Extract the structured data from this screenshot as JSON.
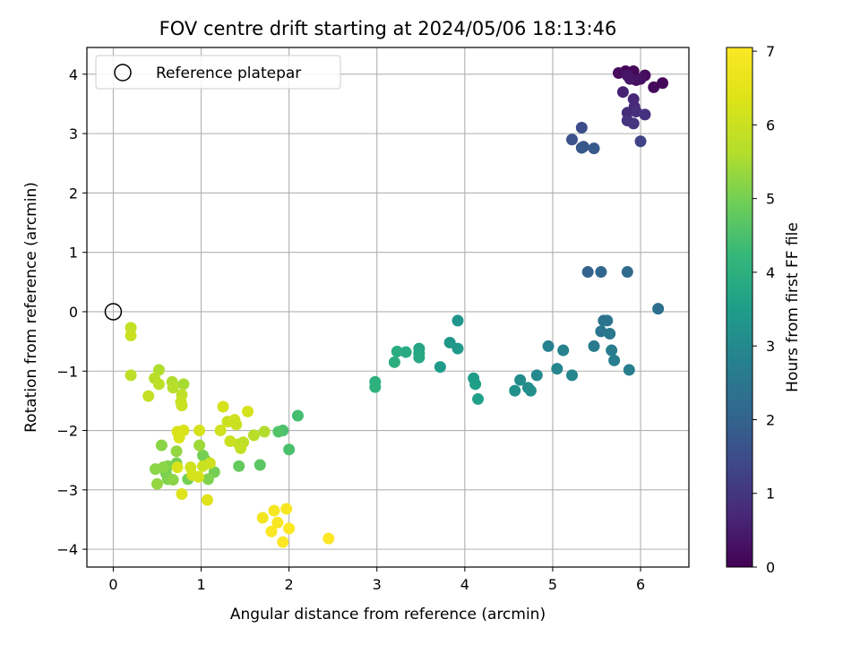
{
  "chart_data": {
    "type": "scatter",
    "title": "FOV centre drift starting at 2024/05/06 18:13:46",
    "xlabel": "Angular distance from reference (arcmin)",
    "ylabel": "Rotation from reference (arcmin)",
    "xlim": [
      -0.3,
      6.55
    ],
    "ylim": [
      -4.3,
      4.45
    ],
    "xticks": [
      "0",
      "1",
      "2",
      "3",
      "4",
      "5",
      "6"
    ],
    "yticks": [
      "−4",
      "−3",
      "−2",
      "−1",
      "0",
      "1",
      "2",
      "3",
      "4"
    ],
    "grid": true,
    "legend": {
      "position": "top-left",
      "entries": [
        {
          "label": "Reference platepar",
          "marker": "open-circle"
        }
      ]
    },
    "reference_point": {
      "x": 0,
      "y": 0
    },
    "colorbar": {
      "label": "Hours from first FF file",
      "range": [
        0,
        7.05
      ],
      "ticks": [
        "0",
        "1",
        "2",
        "3",
        "4",
        "5",
        "6",
        "7"
      ],
      "colormap": "viridis"
    },
    "points": [
      {
        "x": 5.83,
        "y": 4.05,
        "c": 0.05
      },
      {
        "x": 5.92,
        "y": 4.05,
        "c": 0.1
      },
      {
        "x": 6.05,
        "y": 3.98,
        "c": 0.2
      },
      {
        "x": 5.95,
        "y": 3.9,
        "c": 0.25
      },
      {
        "x": 6.0,
        "y": 3.92,
        "c": 0.3
      },
      {
        "x": 6.15,
        "y": 3.78,
        "c": 0.15
      },
      {
        "x": 6.25,
        "y": 3.85,
        "c": 0.1
      },
      {
        "x": 5.75,
        "y": 4.02,
        "c": 0.2
      },
      {
        "x": 5.85,
        "y": 3.98,
        "c": 0.35
      },
      {
        "x": 5.88,
        "y": 3.92,
        "c": 0.4
      },
      {
        "x": 5.8,
        "y": 3.7,
        "c": 0.6
      },
      {
        "x": 5.92,
        "y": 3.58,
        "c": 0.7
      },
      {
        "x": 5.93,
        "y": 3.45,
        "c": 0.75
      },
      {
        "x": 5.85,
        "y": 3.35,
        "c": 0.8
      },
      {
        "x": 5.95,
        "y": 3.37,
        "c": 0.85
      },
      {
        "x": 6.05,
        "y": 3.32,
        "c": 0.9
      },
      {
        "x": 5.85,
        "y": 3.22,
        "c": 0.95
      },
      {
        "x": 5.92,
        "y": 3.17,
        "c": 1.0
      },
      {
        "x": 5.33,
        "y": 3.1,
        "c": 1.5
      },
      {
        "x": 5.22,
        "y": 2.9,
        "c": 1.6
      },
      {
        "x": 5.35,
        "y": 2.78,
        "c": 1.7
      },
      {
        "x": 5.33,
        "y": 2.76,
        "c": 1.75
      },
      {
        "x": 5.47,
        "y": 2.75,
        "c": 1.8
      },
      {
        "x": 6.0,
        "y": 2.87,
        "c": 1.3
      },
      {
        "x": 5.4,
        "y": 0.67,
        "c": 2.0
      },
      {
        "x": 5.55,
        "y": 0.67,
        "c": 2.1
      },
      {
        "x": 5.85,
        "y": 0.67,
        "c": 2.2
      },
      {
        "x": 6.2,
        "y": 0.05,
        "c": 2.3
      },
      {
        "x": 5.58,
        "y": -0.15,
        "c": 2.4
      },
      {
        "x": 5.62,
        "y": -0.15,
        "c": 2.45
      },
      {
        "x": 5.55,
        "y": -0.33,
        "c": 2.5
      },
      {
        "x": 5.65,
        "y": -0.37,
        "c": 2.55
      },
      {
        "x": 5.47,
        "y": -0.58,
        "c": 2.6
      },
      {
        "x": 5.67,
        "y": -0.65,
        "c": 2.65
      },
      {
        "x": 5.7,
        "y": -0.82,
        "c": 2.7
      },
      {
        "x": 5.87,
        "y": -0.98,
        "c": 2.75
      },
      {
        "x": 4.95,
        "y": -0.58,
        "c": 2.8
      },
      {
        "x": 5.12,
        "y": -0.65,
        "c": 2.85
      },
      {
        "x": 5.05,
        "y": -0.96,
        "c": 2.9
      },
      {
        "x": 5.22,
        "y": -1.07,
        "c": 2.95
      },
      {
        "x": 4.82,
        "y": -1.07,
        "c": 3.0
      },
      {
        "x": 4.63,
        "y": -1.15,
        "c": 3.05
      },
      {
        "x": 4.72,
        "y": -1.28,
        "c": 3.1
      },
      {
        "x": 4.75,
        "y": -1.33,
        "c": 3.15
      },
      {
        "x": 4.57,
        "y": -1.33,
        "c": 3.2
      },
      {
        "x": 3.92,
        "y": -0.15,
        "c": 3.3
      },
      {
        "x": 3.83,
        "y": -0.52,
        "c": 3.35
      },
      {
        "x": 3.92,
        "y": -0.62,
        "c": 3.4
      },
      {
        "x": 3.72,
        "y": -0.93,
        "c": 3.45
      },
      {
        "x": 4.1,
        "y": -1.12,
        "c": 3.5
      },
      {
        "x": 4.12,
        "y": -1.22,
        "c": 3.55
      },
      {
        "x": 4.15,
        "y": -1.47,
        "c": 3.6
      },
      {
        "x": 3.48,
        "y": -0.62,
        "c": 3.7
      },
      {
        "x": 3.48,
        "y": -0.7,
        "c": 3.75
      },
      {
        "x": 3.48,
        "y": -0.77,
        "c": 3.8
      },
      {
        "x": 3.33,
        "y": -0.68,
        "c": 3.85
      },
      {
        "x": 3.23,
        "y": -0.67,
        "c": 3.9
      },
      {
        "x": 3.2,
        "y": -0.85,
        "c": 3.95
      },
      {
        "x": 2.98,
        "y": -1.18,
        "c": 4.0
      },
      {
        "x": 2.98,
        "y": -1.27,
        "c": 4.05
      },
      {
        "x": 2.1,
        "y": -1.75,
        "c": 4.4
      },
      {
        "x": 1.93,
        "y": -2.0,
        "c": 4.5
      },
      {
        "x": 1.88,
        "y": -2.02,
        "c": 4.6
      },
      {
        "x": 2.0,
        "y": -2.32,
        "c": 4.5
      },
      {
        "x": 1.67,
        "y": -2.58,
        "c": 4.7
      },
      {
        "x": 1.43,
        "y": -2.6,
        "c": 4.8
      },
      {
        "x": 1.15,
        "y": -2.7,
        "c": 5.0
      },
      {
        "x": 1.05,
        "y": -2.5,
        "c": 5.1
      },
      {
        "x": 1.02,
        "y": -2.42,
        "c": 5.0
      },
      {
        "x": 1.08,
        "y": -2.82,
        "c": 5.1
      },
      {
        "x": 0.85,
        "y": -2.82,
        "c": 5.0
      },
      {
        "x": 0.72,
        "y": -2.55,
        "c": 5.0
      },
      {
        "x": 0.62,
        "y": -2.6,
        "c": 5.1
      },
      {
        "x": 0.6,
        "y": -2.72,
        "c": 5.0
      },
      {
        "x": 0.62,
        "y": -2.82,
        "c": 5.1
      },
      {
        "x": 0.57,
        "y": -2.62,
        "c": 5.2
      },
      {
        "x": 0.68,
        "y": -2.83,
        "c": 5.2
      },
      {
        "x": 0.55,
        "y": -2.25,
        "c": 5.2
      },
      {
        "x": 0.72,
        "y": -2.35,
        "c": 5.3
      },
      {
        "x": 0.48,
        "y": -2.65,
        "c": 5.2
      },
      {
        "x": 0.5,
        "y": -2.9,
        "c": 5.3
      },
      {
        "x": 0.98,
        "y": -2.25,
        "c": 5.4
      },
      {
        "x": 1.72,
        "y": -2.02,
        "c": 5.6
      },
      {
        "x": 1.6,
        "y": -2.08,
        "c": 5.7
      },
      {
        "x": 1.43,
        "y": -2.23,
        "c": 5.8
      },
      {
        "x": 1.48,
        "y": -2.2,
        "c": 5.8
      },
      {
        "x": 1.45,
        "y": -2.3,
        "c": 5.9
      },
      {
        "x": 1.33,
        "y": -2.18,
        "c": 6.0
      },
      {
        "x": 1.3,
        "y": -1.85,
        "c": 6.0
      },
      {
        "x": 1.38,
        "y": -1.82,
        "c": 6.1
      },
      {
        "x": 1.4,
        "y": -1.9,
        "c": 6.0
      },
      {
        "x": 1.22,
        "y": -2.0,
        "c": 6.1
      },
      {
        "x": 1.25,
        "y": -1.6,
        "c": 6.2
      },
      {
        "x": 1.53,
        "y": -1.68,
        "c": 6.2
      },
      {
        "x": 1.1,
        "y": -2.55,
        "c": 6.1
      },
      {
        "x": 1.02,
        "y": -2.6,
        "c": 6.0
      },
      {
        "x": 0.88,
        "y": -2.62,
        "c": 6.1
      },
      {
        "x": 0.9,
        "y": -2.75,
        "c": 6.2
      },
      {
        "x": 0.97,
        "y": -2.78,
        "c": 6.2
      },
      {
        "x": 0.98,
        "y": -2.0,
        "c": 6.2
      },
      {
        "x": 0.8,
        "y": -2.0,
        "c": 6.3
      },
      {
        "x": 0.73,
        "y": -2.02,
        "c": 6.3
      },
      {
        "x": 0.75,
        "y": -2.12,
        "c": 6.3
      },
      {
        "x": 0.78,
        "y": -3.07,
        "c": 6.4
      },
      {
        "x": 1.07,
        "y": -3.17,
        "c": 6.4
      },
      {
        "x": 0.73,
        "y": -2.62,
        "c": 6.3
      },
      {
        "x": 0.8,
        "y": -1.22,
        "c": 5.5
      },
      {
        "x": 0.67,
        "y": -1.18,
        "c": 5.6
      },
      {
        "x": 0.68,
        "y": -1.28,
        "c": 5.7
      },
      {
        "x": 0.78,
        "y": -1.4,
        "c": 5.8
      },
      {
        "x": 0.77,
        "y": -1.52,
        "c": 5.9
      },
      {
        "x": 0.78,
        "y": -1.58,
        "c": 6.0
      },
      {
        "x": 0.52,
        "y": -0.98,
        "c": 5.6
      },
      {
        "x": 0.47,
        "y": -1.12,
        "c": 5.7
      },
      {
        "x": 0.52,
        "y": -1.22,
        "c": 5.8
      },
      {
        "x": 0.4,
        "y": -1.42,
        "c": 5.9
      },
      {
        "x": 0.2,
        "y": -1.07,
        "c": 5.8
      },
      {
        "x": 0.2,
        "y": -0.27,
        "c": 5.9
      },
      {
        "x": 0.2,
        "y": -0.4,
        "c": 6.0
      },
      {
        "x": 1.7,
        "y": -3.47,
        "c": 6.8
      },
      {
        "x": 1.83,
        "y": -3.35,
        "c": 6.9
      },
      {
        "x": 1.97,
        "y": -3.32,
        "c": 6.9
      },
      {
        "x": 1.87,
        "y": -3.55,
        "c": 6.95
      },
      {
        "x": 1.8,
        "y": -3.7,
        "c": 7.0
      },
      {
        "x": 2.0,
        "y": -3.65,
        "c": 7.0
      },
      {
        "x": 1.93,
        "y": -3.88,
        "c": 7.0
      },
      {
        "x": 2.45,
        "y": -3.82,
        "c": 7.05
      }
    ]
  }
}
